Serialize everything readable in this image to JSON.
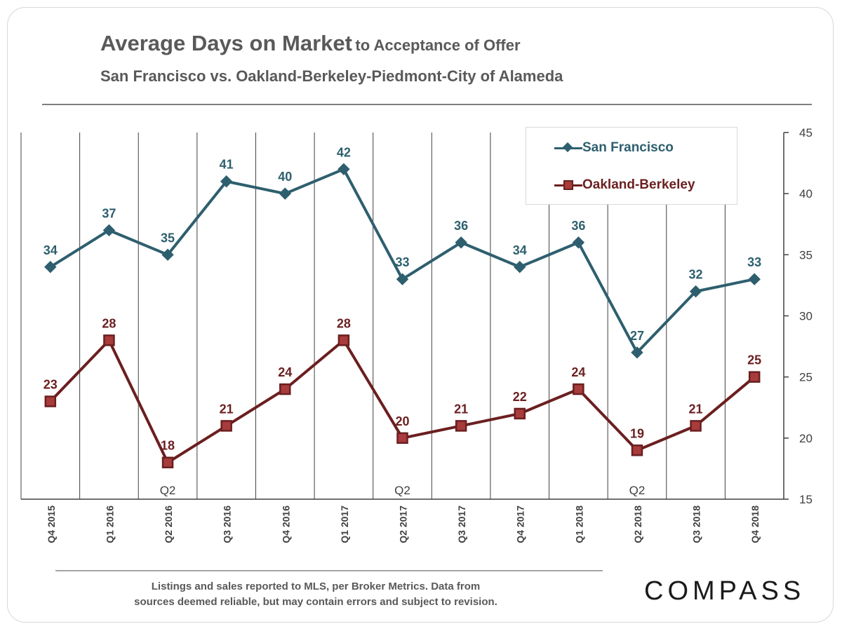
{
  "header": {
    "title_main": "Average Days on Market",
    "title_suffix": "to Acceptance of Offer",
    "subtitle": "San Francisco vs. Oakland-Berkeley-Piedmont-City  of Alameda"
  },
  "colors": {
    "san_francisco": "#2e5f6e",
    "oakland_berkeley": "#6b1f20",
    "oakland_marker_fill": "#a83b3b",
    "gridline": "#404040",
    "text": "#595959"
  },
  "chart_data": {
    "type": "line",
    "categories": [
      "Q4 2015",
      "Q1 2016",
      "Q2 2016",
      "Q3 2016",
      "Q4 2016",
      "Q1 2017",
      "Q2 2017",
      "Q3 2017",
      "Q4 2017",
      "Q1 2018",
      "Q2 2018",
      "Q3 2018",
      "Q4 2018"
    ],
    "series": [
      {
        "name": "San Francisco",
        "marker": "diamond",
        "values": [
          34,
          37,
          35,
          41,
          40,
          42,
          33,
          36,
          34,
          36,
          27,
          32,
          33
        ]
      },
      {
        "name": "Oakland-Berkeley",
        "marker": "square",
        "values": [
          23,
          28,
          18,
          21,
          24,
          28,
          20,
          21,
          22,
          24,
          19,
          21,
          25
        ]
      }
    ],
    "y_axis": {
      "position": "right",
      "min": 15,
      "max": 45,
      "ticks": [
        15,
        20,
        25,
        30,
        35,
        40,
        45
      ]
    },
    "annotations": [
      {
        "category": "Q2 2016",
        "text": "Q2"
      },
      {
        "category": "Q2 2017",
        "text": "Q2"
      },
      {
        "category": "Q2 2018",
        "text": "Q2"
      }
    ],
    "vertical_gridlines": true,
    "legend_placement": "top-right"
  },
  "footer": {
    "note_line1": "Listings  and sales reported to  MLS, per Broker Metrics.  Data from",
    "note_line2": "sources  deemed reliable, but may contain errors and subject to revision.",
    "brand": "COMPASS"
  }
}
